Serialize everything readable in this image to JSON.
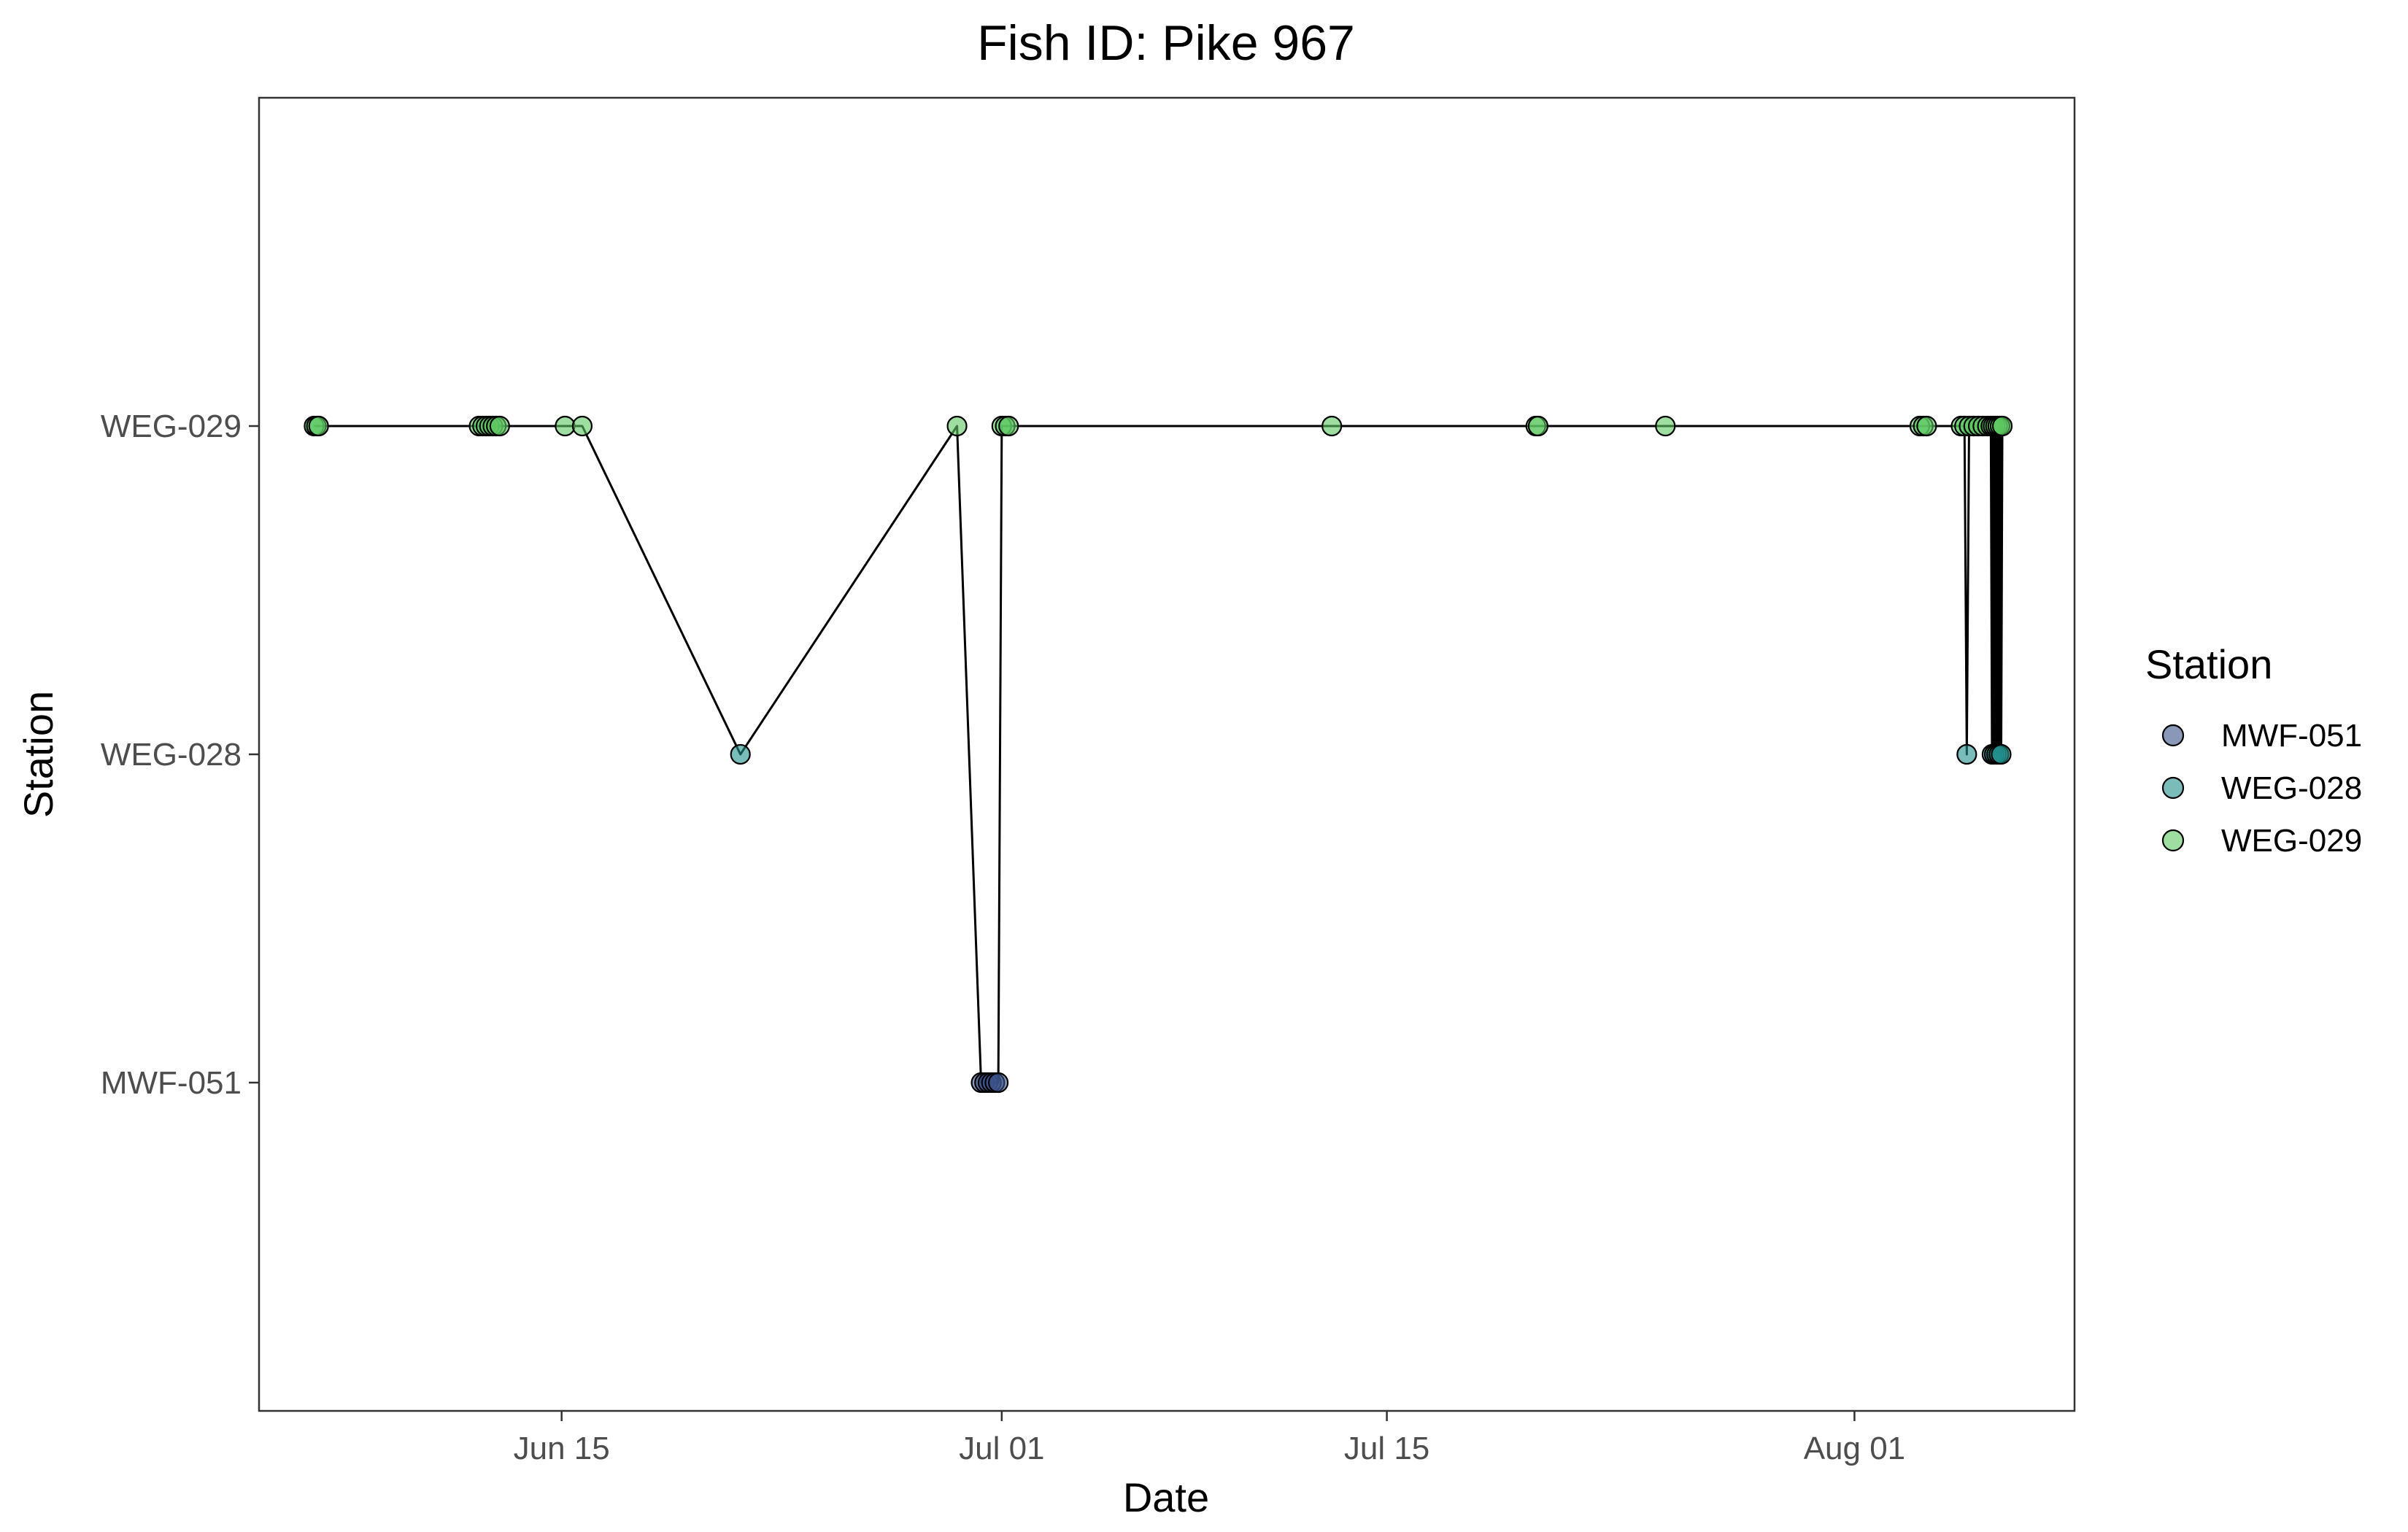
{
  "chart_data": {
    "type": "line",
    "title": "Fish ID: Pike 967",
    "xlabel": "Date",
    "ylabel": "Station",
    "categories": [
      "MWF-051",
      "WEG-028",
      "WEG-029"
    ],
    "x_ticks": [
      {
        "value": "2023-06-15",
        "label": "Jun 15"
      },
      {
        "value": "2023-07-01",
        "label": "Jul 01"
      },
      {
        "value": "2023-07-15",
        "label": "Jul 15"
      },
      {
        "value": "2023-08-01",
        "label": "Aug 01"
      }
    ],
    "xlim": [
      "2023-06-04",
      "2023-08-09"
    ],
    "grid": false,
    "legend": {
      "title": "Station",
      "position": "right",
      "entries": [
        {
          "label": "MWF-051",
          "color": "#3b528b"
        },
        {
          "label": "WEG-028",
          "color": "#21908c"
        },
        {
          "label": "WEG-029",
          "color": "#5ec962"
        }
      ]
    },
    "line_color": "#000000",
    "points": [
      {
        "date": "2023-06-06T00:00",
        "station": "WEG-029"
      },
      {
        "date": "2023-06-06T02:00",
        "station": "WEG-029"
      },
      {
        "date": "2023-06-06T04:00",
        "station": "WEG-029"
      },
      {
        "date": "2023-06-12T00:00",
        "station": "WEG-029"
      },
      {
        "date": "2023-06-12T03:00",
        "station": "WEG-029"
      },
      {
        "date": "2023-06-12T06:00",
        "station": "WEG-029"
      },
      {
        "date": "2023-06-12T09:00",
        "station": "WEG-029"
      },
      {
        "date": "2023-06-12T12:00",
        "station": "WEG-029"
      },
      {
        "date": "2023-06-12T15:00",
        "station": "WEG-029"
      },
      {
        "date": "2023-06-12T18:00",
        "station": "WEG-029"
      },
      {
        "date": "2023-06-15T03:00",
        "station": "WEG-029"
      },
      {
        "date": "2023-06-15T18:00",
        "station": "WEG-029"
      },
      {
        "date": "2023-06-21T12:00",
        "station": "WEG-028"
      },
      {
        "date": "2023-06-29T09:00",
        "station": "WEG-029"
      },
      {
        "date": "2023-06-30T06:00",
        "station": "MWF-051"
      },
      {
        "date": "2023-06-30T09:00",
        "station": "MWF-051"
      },
      {
        "date": "2023-06-30T12:00",
        "station": "MWF-051"
      },
      {
        "date": "2023-06-30T15:00",
        "station": "MWF-051"
      },
      {
        "date": "2023-06-30T18:00",
        "station": "MWF-051"
      },
      {
        "date": "2023-06-30T21:00",
        "station": "MWF-051"
      },
      {
        "date": "2023-07-01T00:00",
        "station": "WEG-029"
      },
      {
        "date": "2023-07-01T03:00",
        "station": "WEG-029"
      },
      {
        "date": "2023-07-01T06:00",
        "station": "WEG-029"
      },
      {
        "date": "2023-07-13T00:00",
        "station": "WEG-029"
      },
      {
        "date": "2023-07-20T10:00",
        "station": "WEG-029"
      },
      {
        "date": "2023-07-20T12:00",
        "station": "WEG-029"
      },
      {
        "date": "2023-07-25T03:00",
        "station": "WEG-029"
      },
      {
        "date": "2023-08-03T09:00",
        "station": "WEG-029"
      },
      {
        "date": "2023-08-03T12:00",
        "station": "WEG-029"
      },
      {
        "date": "2023-08-03T15:00",
        "station": "WEG-029"
      },
      {
        "date": "2023-08-04T21:00",
        "station": "WEG-029"
      },
      {
        "date": "2023-08-05T00:00",
        "station": "WEG-029"
      },
      {
        "date": "2023-08-05T02:00",
        "station": "WEG-028"
      },
      {
        "date": "2023-08-05T04:00",
        "station": "WEG-029"
      },
      {
        "date": "2023-08-05T08:00",
        "station": "WEG-029"
      },
      {
        "date": "2023-08-05T12:00",
        "station": "WEG-029"
      },
      {
        "date": "2023-08-05T16:00",
        "station": "WEG-029"
      },
      {
        "date": "2023-08-05T20:00",
        "station": "WEG-029"
      },
      {
        "date": "2023-08-05T23:00",
        "station": "WEG-029"
      },
      {
        "date": "2023-08-06T00:00",
        "station": "WEG-028"
      },
      {
        "date": "2023-08-06T01:00",
        "station": "WEG-029"
      },
      {
        "date": "2023-08-06T02:00",
        "station": "WEG-028"
      },
      {
        "date": "2023-08-06T03:00",
        "station": "WEG-029"
      },
      {
        "date": "2023-08-06T04:00",
        "station": "WEG-028"
      },
      {
        "date": "2023-08-06T05:00",
        "station": "WEG-029"
      },
      {
        "date": "2023-08-06T06:00",
        "station": "WEG-028"
      },
      {
        "date": "2023-08-06T07:00",
        "station": "WEG-029"
      },
      {
        "date": "2023-08-06T08:00",
        "station": "WEG-028"
      },
      {
        "date": "2023-08-06T09:00",
        "station": "WEG-029"
      }
    ]
  }
}
